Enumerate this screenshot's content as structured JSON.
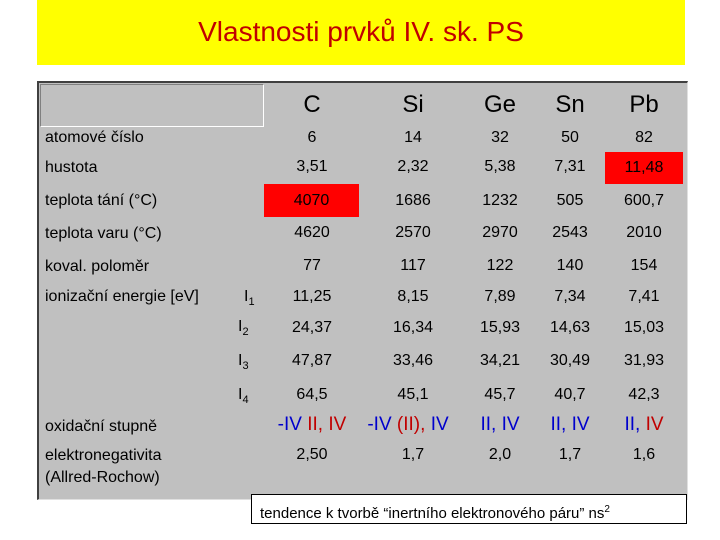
{
  "title": "Vlastnosti prvků IV. sk. PS",
  "columns": [
    "C",
    "Si",
    "Ge",
    "Sn",
    "Pb"
  ],
  "rows": [
    {
      "label": "atomové číslo",
      "values": [
        "6",
        "14",
        "32",
        "50",
        "82"
      ]
    },
    {
      "label": "hustota",
      "values": [
        "3,51",
        "2,32",
        "5,38",
        "7,31",
        "11,48"
      ]
    },
    {
      "label": "teplota tání (°C)",
      "values": [
        "4070",
        "1686",
        "1232",
        "505",
        "600,7"
      ]
    },
    {
      "label": "teplota varu (°C)",
      "values": [
        "4620",
        "2570",
        "2970",
        "2543",
        "2010"
      ]
    },
    {
      "label": "koval. poloměr",
      "values": [
        "77",
        "117",
        "122",
        "140",
        "154"
      ]
    },
    {
      "label": "ionizační energie  [eV]",
      "values": [
        "11,25",
        "8,15",
        "7,89",
        "7,34",
        "7,41"
      ]
    },
    {
      "label": "",
      "values": [
        "24,37",
        "16,34",
        "15,93",
        "14,63",
        "15,03"
      ]
    },
    {
      "label": "",
      "values": [
        "47,87",
        "33,46",
        "34,21",
        "30,49",
        "31,93"
      ]
    },
    {
      "label": "",
      "values": [
        "64,5",
        "45,1",
        "45,7",
        "40,7",
        "42,3"
      ]
    }
  ],
  "ionization_labels": [
    {
      "base": "I",
      "sub": "1"
    },
    {
      "base": "I",
      "sub": "2"
    },
    {
      "base": "I",
      "sub": "3"
    },
    {
      "base": "I",
      "sub": "4"
    }
  ],
  "oxidation": {
    "label": "oxidační stupně",
    "values": [
      {
        "a": "-IV ",
        "b": "II, IV"
      },
      {
        "a": "-IV ",
        "b": "(II), ",
        "c": "IV"
      },
      {
        "a": "",
        "b": "II, IV"
      },
      {
        "a": "",
        "b": "II, IV"
      },
      {
        "a": "",
        "b": "II, ",
        "c": "IV"
      }
    ]
  },
  "electronegativity": {
    "label_line1": "elektronegativita",
    "label_line2": "(Allred-Rochow)",
    "values": [
      "2,50",
      "1,7",
      "2,0",
      "1,7",
      "1,6"
    ]
  },
  "note": {
    "text": "tendence k tvorbě “inertního elektronového páru” ns",
    "sup": "2"
  },
  "highlight_color": "#ff0000",
  "title_bar_color": "#ffff00",
  "title_color": "#c00000"
}
